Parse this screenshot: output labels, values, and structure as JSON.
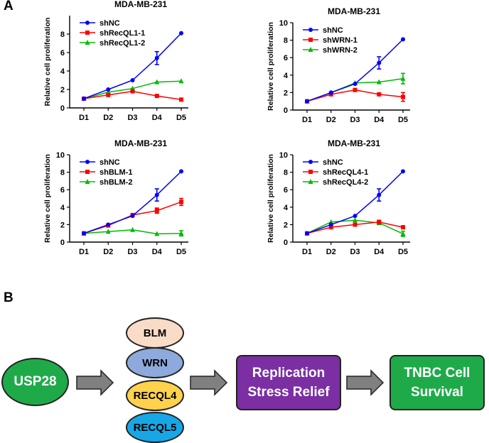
{
  "panel_labels": {
    "a": "A",
    "b": "B"
  },
  "chart_data": [
    {
      "type": "line",
      "title": "MDA-MB-231",
      "xlabel": "",
      "ylabel": "Relative cell proliferation",
      "categories": [
        "D1",
        "D2",
        "D3",
        "D4",
        "D5"
      ],
      "ylim": [
        0,
        10
      ],
      "yticks": [
        0,
        2,
        4,
        6,
        8
      ],
      "grid": false,
      "legend": "top-left",
      "series": [
        {
          "name": "shNC",
          "color": "#0000ff",
          "marker": "circle",
          "values": [
            1.0,
            2.0,
            3.0,
            5.4,
            8.1
          ],
          "errors": [
            0,
            0.1,
            0.1,
            0.7,
            0.1
          ]
        },
        {
          "name": "shRecQL1-1",
          "color": "#ff0000",
          "marker": "square",
          "values": [
            1.0,
            1.4,
            1.8,
            1.3,
            0.9
          ],
          "errors": [
            0,
            0.1,
            0.1,
            0.1,
            0.1
          ]
        },
        {
          "name": "shRecQL1-2",
          "color": "#00bb00",
          "marker": "triangle",
          "values": [
            1.0,
            1.7,
            2.1,
            2.8,
            2.9
          ],
          "errors": [
            0,
            0.1,
            0.1,
            0.1,
            0.1
          ]
        }
      ]
    },
    {
      "type": "line",
      "title": "MDA-MB-231",
      "xlabel": "",
      "ylabel": "Relative cell proliferation",
      "categories": [
        "D1",
        "D2",
        "D3",
        "D4",
        "D5"
      ],
      "ylim": [
        0,
        10
      ],
      "yticks": [
        0,
        2,
        4,
        6,
        8,
        10
      ],
      "grid": false,
      "legend": "top-left",
      "series": [
        {
          "name": "shNC",
          "color": "#0000ff",
          "marker": "circle",
          "values": [
            1.0,
            2.0,
            3.0,
            5.4,
            8.1
          ],
          "errors": [
            0,
            0.1,
            0.1,
            0.7,
            0.1
          ]
        },
        {
          "name": "shWRN-1",
          "color": "#ff0000",
          "marker": "square",
          "values": [
            1.0,
            1.8,
            2.3,
            1.8,
            1.5
          ],
          "errors": [
            0,
            0.1,
            0.1,
            0.1,
            0.5
          ]
        },
        {
          "name": "shWRN-2",
          "color": "#00bb00",
          "marker": "triangle",
          "values": [
            1.0,
            2.0,
            3.1,
            3.2,
            3.6
          ],
          "errors": [
            0,
            0.1,
            0.1,
            0.1,
            0.6
          ]
        }
      ]
    },
    {
      "type": "line",
      "title": "MDA-MB-231",
      "xlabel": "",
      "ylabel": "Relative cell proliferation",
      "categories": [
        "D1",
        "D2",
        "D3",
        "D4",
        "D5"
      ],
      "ylim": [
        0,
        10
      ],
      "yticks": [
        0,
        2,
        4,
        6,
        8,
        10
      ],
      "grid": false,
      "legend": "top-left",
      "series": [
        {
          "name": "shNC",
          "color": "#0000ff",
          "marker": "circle",
          "values": [
            1.0,
            2.0,
            3.0,
            5.4,
            8.1
          ],
          "errors": [
            0,
            0.1,
            0.1,
            0.7,
            0.1
          ]
        },
        {
          "name": "shBLM-1",
          "color": "#ff0000",
          "marker": "square",
          "values": [
            1.0,
            1.9,
            3.1,
            3.6,
            4.6
          ],
          "errors": [
            0,
            0.1,
            0.1,
            0.3,
            0.4
          ]
        },
        {
          "name": "shBLM-2",
          "color": "#00bb00",
          "marker": "triangle",
          "values": [
            1.0,
            1.2,
            1.4,
            0.95,
            1.0
          ],
          "errors": [
            0,
            0.1,
            0.1,
            0.1,
            0.3
          ]
        }
      ]
    },
    {
      "type": "line",
      "title": "MDA-MB-231",
      "xlabel": "",
      "ylabel": "Relative cell proliferation",
      "categories": [
        "D1",
        "D2",
        "D3",
        "D4",
        "D5"
      ],
      "ylim": [
        0,
        10
      ],
      "yticks": [
        0,
        2,
        4,
        6,
        8,
        10
      ],
      "grid": false,
      "legend": "top-left",
      "series": [
        {
          "name": "shNC",
          "color": "#0000ff",
          "marker": "circle",
          "values": [
            1.0,
            2.0,
            3.0,
            5.4,
            8.1
          ],
          "errors": [
            0,
            0.1,
            0.1,
            0.7,
            0.1
          ]
        },
        {
          "name": "shRecQL4-1",
          "color": "#ff0000",
          "marker": "square",
          "values": [
            1.0,
            1.7,
            2.0,
            2.3,
            1.7
          ],
          "errors": [
            0,
            0.1,
            0.1,
            0.2,
            0.1
          ]
        },
        {
          "name": "shRecQL4-2",
          "color": "#00bb00",
          "marker": "triangle",
          "values": [
            1.0,
            2.3,
            2.5,
            2.2,
            0.95
          ],
          "errors": [
            0,
            0.1,
            0.1,
            0.2,
            0.3
          ]
        }
      ]
    }
  ],
  "diagram": {
    "usp28": {
      "label": "USP28",
      "fill": "#1faa4a",
      "text_color": "#ffffff"
    },
    "helicases": [
      {
        "label": "BLM",
        "fill": "#f9dcc8"
      },
      {
        "label": "WRN",
        "fill": "#8ea9db"
      },
      {
        "label": "RECQL4",
        "fill": "#ffd24d"
      },
      {
        "label": "RECQL5",
        "fill": "#17a7e6"
      }
    ],
    "replication": {
      "label_line1": "Replication",
      "label_line2": "Stress Relief",
      "fill": "#7b2fa3",
      "text_color": "#ffffff"
    },
    "survival": {
      "label_line1": "TNBC Cell",
      "label_line2": "Survival",
      "fill": "#1faa4a",
      "text_color": "#ffffff"
    },
    "arrow_fill": "#808080"
  }
}
